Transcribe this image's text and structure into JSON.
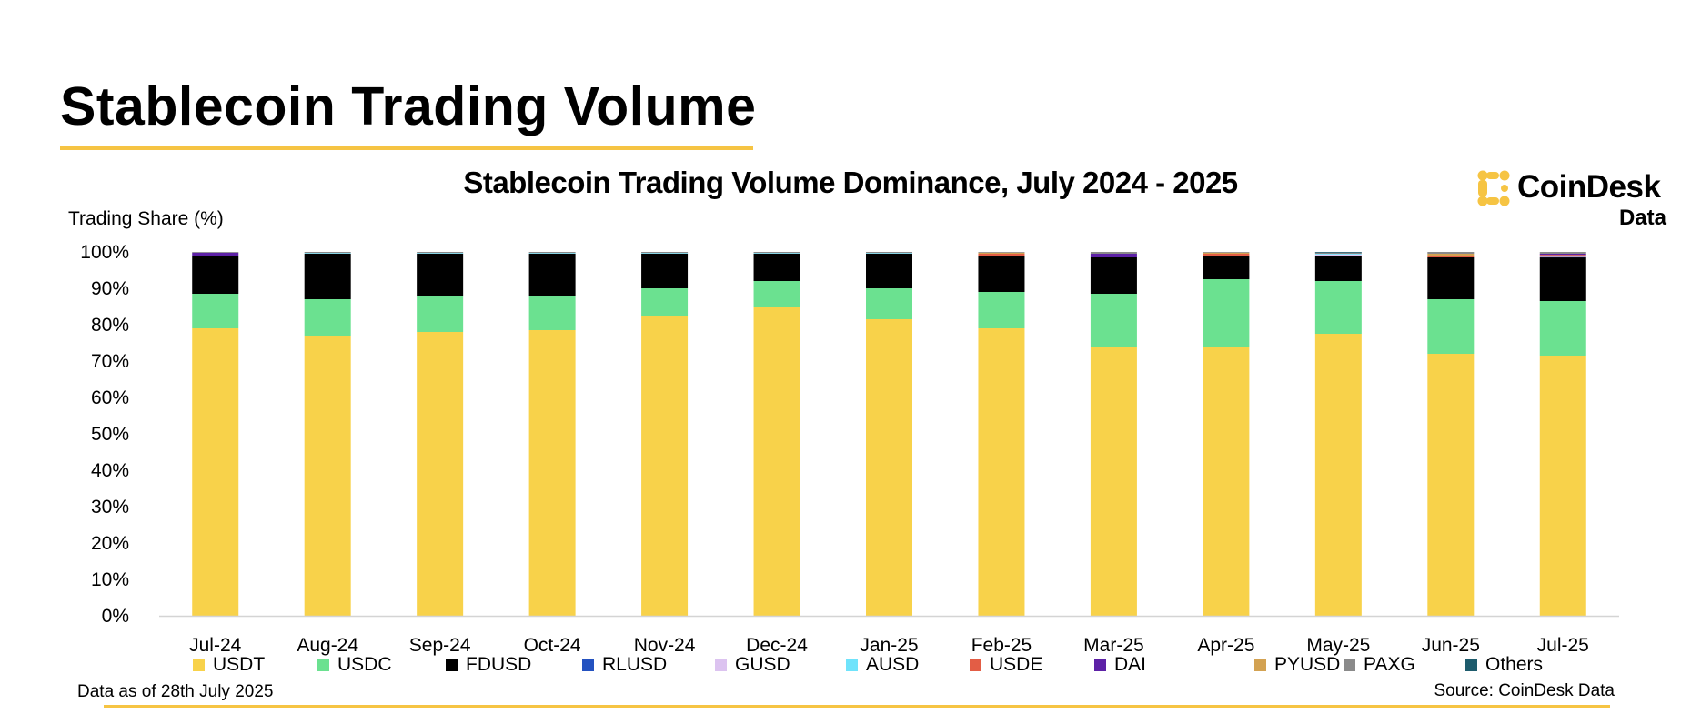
{
  "header": {
    "title": "Stablecoin Trading Volume"
  },
  "colors": {
    "accent": "#f6c443"
  },
  "logo": {
    "name": "CoinDesk",
    "sub": "Data"
  },
  "footer": {
    "left": "Data as of 28th July 2025",
    "right": "Source: CoinDesk Data"
  },
  "chart_data": {
    "type": "bar",
    "stacked": true,
    "title": "Stablecoin Trading Volume Dominance, July 2024 - 2025",
    "ylabel": "Trading Share (%)",
    "xlabel": "",
    "ylim": [
      0,
      100
    ],
    "yticks": [
      "0%",
      "10%",
      "20%",
      "30%",
      "40%",
      "50%",
      "60%",
      "70%",
      "80%",
      "90%",
      "100%"
    ],
    "legend_position": "bottom",
    "grid": false,
    "categories": [
      "Jul-24",
      "Aug-24",
      "Sep-24",
      "Oct-24",
      "Nov-24",
      "Dec-24",
      "Jan-25",
      "Feb-25",
      "Mar-25",
      "Apr-25",
      "May-25",
      "Jun-25",
      "Jul-25"
    ],
    "series": [
      {
        "name": "USDT",
        "color": "#f8d24a",
        "values": [
          79.0,
          77.0,
          78.0,
          78.5,
          82.5,
          85.0,
          81.5,
          79.0,
          74.0,
          74.0,
          77.5,
          72.0,
          71.5
        ]
      },
      {
        "name": "USDC",
        "color": "#6be190",
        "values": [
          9.5,
          10.0,
          10.0,
          9.5,
          7.5,
          7.0,
          8.5,
          10.0,
          14.5,
          18.5,
          14.5,
          15.0,
          15.0
        ]
      },
      {
        "name": "FDUSD",
        "color": "#000000",
        "values": [
          10.5,
          12.5,
          11.5,
          11.5,
          9.5,
          7.5,
          9.5,
          10.0,
          10.0,
          6.5,
          7.0,
          11.5,
          12.0
        ]
      },
      {
        "name": "RLUSD",
        "color": "#2452c0",
        "values": [
          0,
          0,
          0,
          0,
          0,
          0,
          0,
          0,
          0,
          0,
          0,
          0,
          0.1
        ]
      },
      {
        "name": "GUSD",
        "color": "#dcc3f0",
        "values": [
          0,
          0,
          0,
          0,
          0,
          0,
          0,
          0,
          0,
          0,
          0.3,
          0,
          0.1
        ]
      },
      {
        "name": "AUSD",
        "color": "#6fe3fb",
        "values": [
          0,
          0.2,
          0.2,
          0.2,
          0.2,
          0.2,
          0.2,
          0,
          0,
          0,
          0.2,
          0,
          0
        ]
      },
      {
        "name": "USDE",
        "color": "#e35d45",
        "values": [
          0,
          0,
          0,
          0,
          0,
          0,
          0,
          0.5,
          0,
          0.5,
          0,
          0.4,
          0.5
        ]
      },
      {
        "name": "DAI",
        "color": "#5d21a6",
        "values": [
          0.8,
          0,
          0,
          0,
          0,
          0,
          0,
          0,
          1.0,
          0,
          0,
          0,
          0.3
        ]
      },
      {
        "name": "PYUSD",
        "color": "#d3a252",
        "values": [
          0,
          0,
          0,
          0,
          0,
          0,
          0,
          0.3,
          0,
          0.3,
          0,
          0.6,
          0
        ]
      },
      {
        "name": "PAXG",
        "color": "#8a8a8a",
        "values": [
          0.2,
          0.3,
          0.3,
          0.3,
          0.3,
          0.3,
          0.3,
          0.2,
          0.5,
          0.2,
          0.3,
          0.5,
          0.5
        ]
      },
      {
        "name": "Others",
        "color": "#1e5c6d",
        "values": [
          0,
          0,
          0,
          0,
          0,
          0,
          0,
          0,
          0,
          0,
          0.2,
          0,
          0
        ]
      }
    ]
  }
}
